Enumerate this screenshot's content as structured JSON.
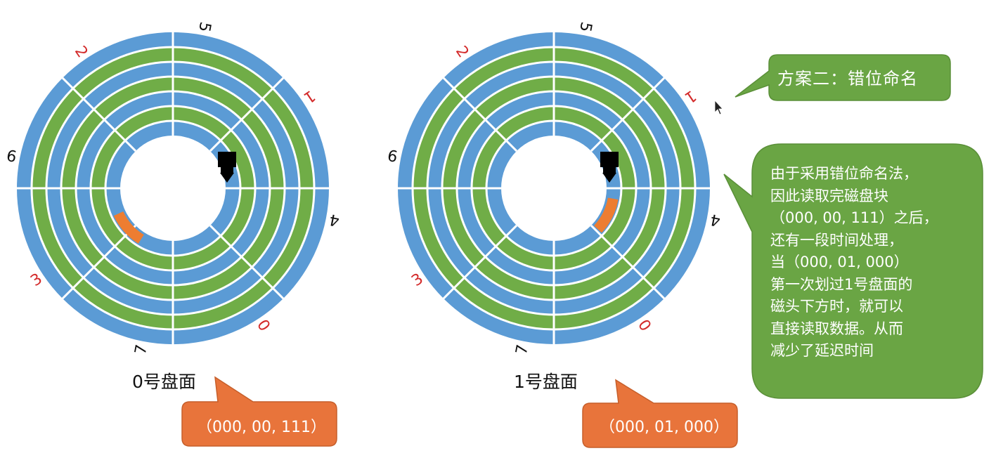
{
  "disks": [
    {
      "label": "0号盘面",
      "sector_labels": [
        {
          "text": "5",
          "color": "#111111"
        },
        {
          "text": "1",
          "color": "#d32a2a"
        },
        {
          "text": "4",
          "color": "#111111"
        },
        {
          "text": "0",
          "color": "#d32a2a"
        },
        {
          "text": "7",
          "color": "#111111"
        },
        {
          "text": "3",
          "color": "#d32a2a"
        },
        {
          "text": "6",
          "color": "#111111"
        },
        {
          "text": "2",
          "color": "#d32a2a"
        }
      ],
      "address_callout": "（000, 00, 111）"
    },
    {
      "label": "1号盘面",
      "sector_labels": [
        {
          "text": "1",
          "color": "#d32a2a"
        },
        {
          "text": "4",
          "color": "#111111"
        },
        {
          "text": "0",
          "color": "#d32a2a"
        },
        {
          "text": "7",
          "color": "#111111"
        },
        {
          "text": "3",
          "color": "#d32a2a"
        },
        {
          "text": "6",
          "color": "#111111"
        },
        {
          "text": "2",
          "color": "#d32a2a"
        },
        {
          "text": "5",
          "color": "#111111"
        }
      ],
      "address_callout": "（000, 01, 000）"
    }
  ],
  "title_callout": "方案二：错位命名",
  "explanation_lines": [
    "由于采用错位命名法，",
    "因此读取完磁盘块",
    "（000, 00, 111）之后，",
    "还有一段时间处理，",
    "当（000, 01, 000）",
    "第一次划过1号盘面的",
    "磁头下方时，就可以",
    "直接读取数据。从而",
    "减少了延迟时间"
  ],
  "colors": {
    "track_blue": "#5b9bd5",
    "track_green": "#70ad47",
    "highlight_orange": "#ed7d31",
    "callout_green": "#6aa544",
    "callout_orange": "#e8743b",
    "head": "#000000"
  }
}
